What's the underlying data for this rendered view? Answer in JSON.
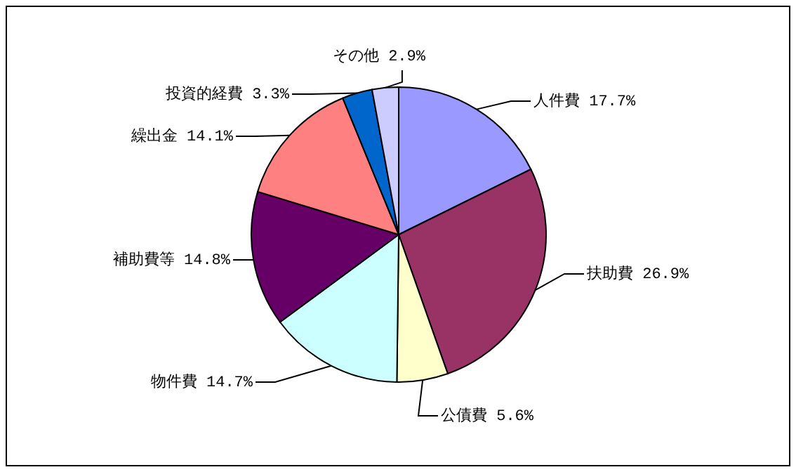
{
  "chart_data": {
    "type": "pie",
    "categories": [
      "人件費",
      "扶助費",
      "公債費",
      "物件費",
      "補助費等",
      "繰出金",
      "投資的経費",
      "その他"
    ],
    "values": [
      17.7,
      26.9,
      5.6,
      14.7,
      14.8,
      14.1,
      3.3,
      2.9
    ],
    "value_labels": [
      "17.7%",
      "26.9%",
      "5.6%",
      "14.7%",
      "14.8%",
      "14.1%",
      "3.3%",
      "2.9%"
    ],
    "colors": [
      "#9999ff",
      "#993366",
      "#ffffcc",
      "#ccffff",
      "#660066",
      "#ff8080",
      "#0066cc",
      "#ccccff"
    ]
  }
}
